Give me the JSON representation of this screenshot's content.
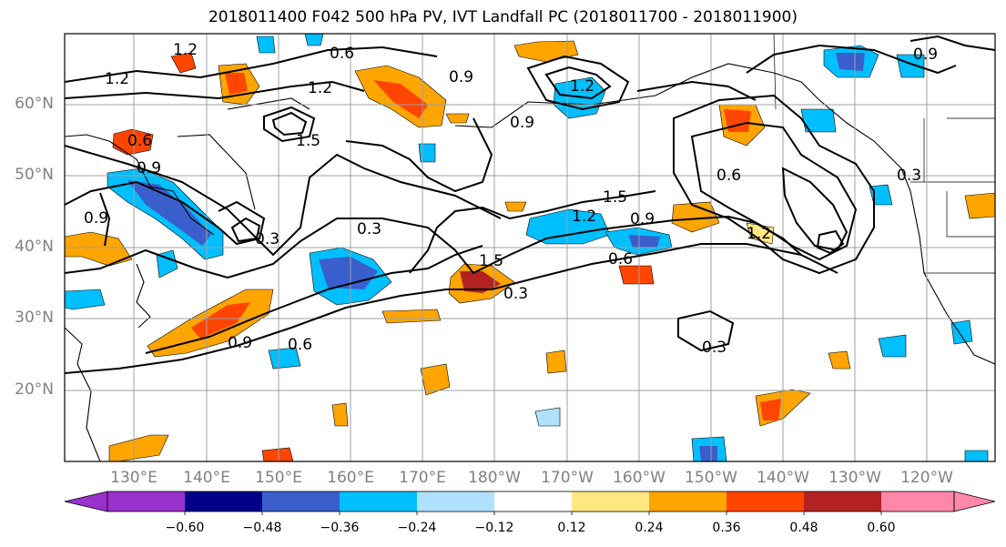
{
  "title": "2018011400 F042 500 hPa PV, IVT Landfall PC (2018011700 - 2018011900)",
  "lat_labels": [
    "60°N",
    "50°N",
    "40°N",
    "30°N",
    "20°N"
  ],
  "lon_labels": [
    "130°E",
    "140°E",
    "150°E",
    "160°E",
    "170°E",
    "180°W",
    "170°W",
    "160°W",
    "150°W",
    "140°W",
    "130°W",
    "120°W"
  ],
  "colorbar": {
    "ticks": [
      "−0.60",
      "−0.48",
      "−0.36",
      "−0.24",
      "−0.12",
      "0.12",
      "0.24",
      "0.36",
      "0.48",
      "0.60"
    ],
    "colors": [
      "#9932cc",
      "#00008b",
      "#3a5fcd",
      "#00bfff",
      "#b0e2ff",
      "#ffffff",
      "#ffe882",
      "#ffa500",
      "#ff4500",
      "#b22222",
      "#ff88aa"
    ]
  },
  "contour_labels": [
    "1.2",
    "0.6",
    "1.2",
    "0.9",
    "1.2",
    "0.6",
    "0.9",
    "0.9",
    "1.5",
    "0.9",
    "0.3",
    "1.5",
    "1.2",
    "0.9",
    "0.3",
    "0.6",
    "1.5",
    "1.2",
    "0.6",
    "0.3",
    "0.9",
    "0.6",
    "0.3",
    "1.2",
    "0.3",
    "0.9"
  ]
}
